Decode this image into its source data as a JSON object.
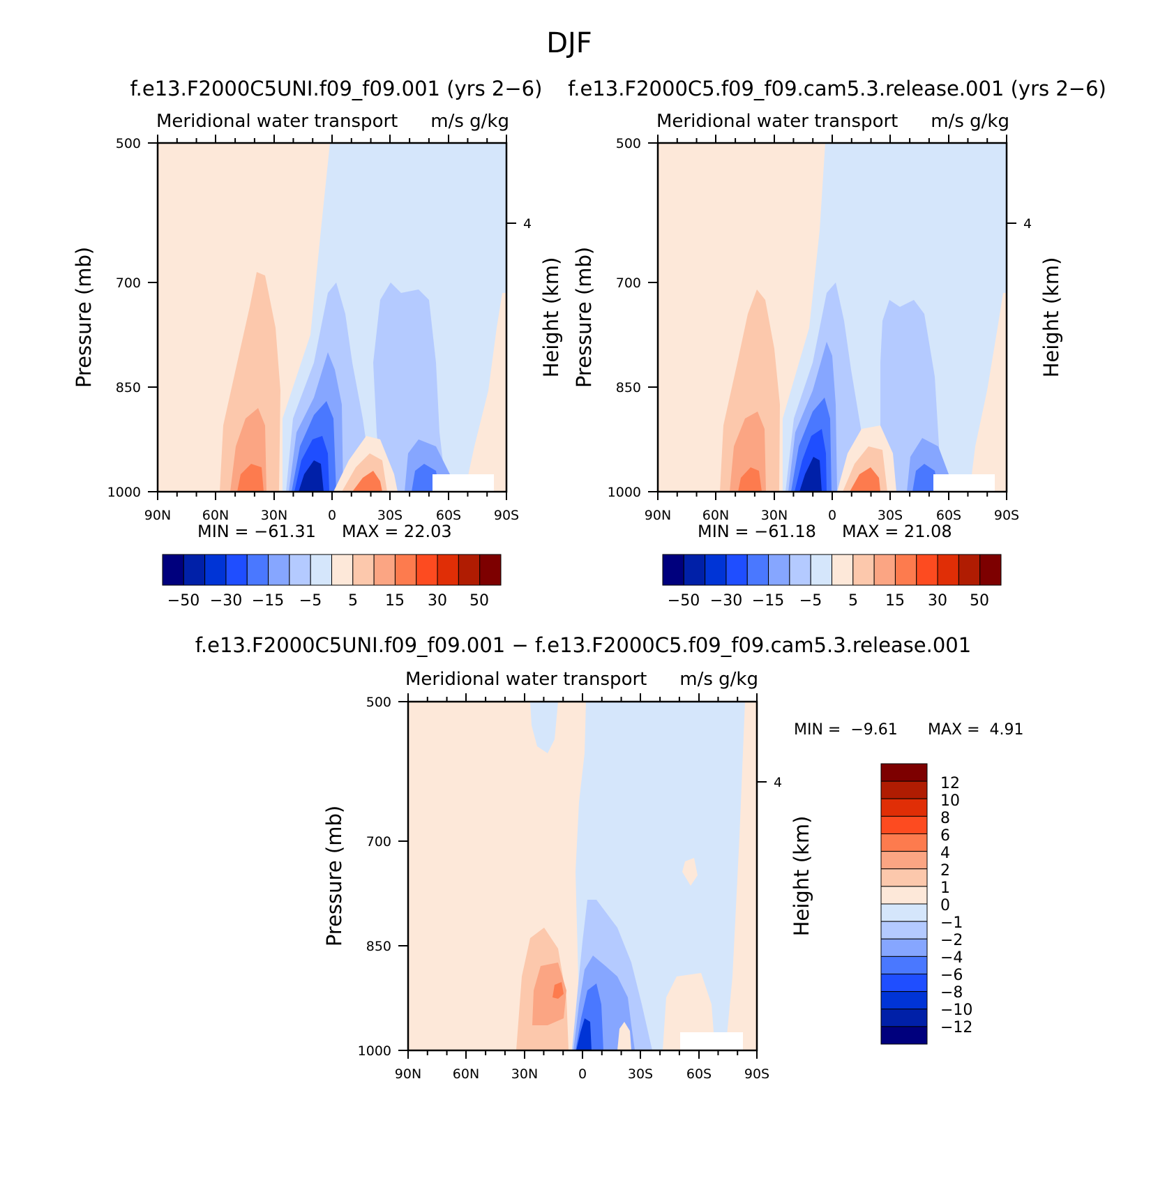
{
  "figure_title": "DJF",
  "colors": {
    "cmap": [
      "#00007d",
      "#0020a8",
      "#0034d6",
      "#1f4eff",
      "#4a78ff",
      "#86a6ff",
      "#b4caff",
      "#d5e6fb",
      "#fde8d9",
      "#fcc8ac",
      "#fba583",
      "#fd7b4e",
      "#fd4b20",
      "#e02e06",
      "#b01c02",
      "#7d0000"
    ]
  },
  "chart_data": [
    {
      "type": "heatmap",
      "id": "panel-1",
      "title": "f.e13.F2000C5UNI.f09_f09.001 (yrs 2−6)",
      "variable": "Meridional water transport",
      "units": "m/s g/kg",
      "x_ticks": [
        "90N",
        "60N",
        "30N",
        "0",
        "30S",
        "60S",
        "90S"
      ],
      "x_range": [
        90,
        -90
      ],
      "ylabel": "Pressure (mb)",
      "y_ticks": [
        "500",
        "700",
        "850",
        "1000"
      ],
      "y_range": [
        500,
        1000
      ],
      "y_scale": "log",
      "right_label": "Height (km)",
      "right_ticks": [
        "4"
      ],
      "min_label": "MIN = −61.31",
      "max_label": "MAX = 22.03",
      "min": -61.31,
      "max": 22.03,
      "levels": [
        -50,
        -40,
        -30,
        -20,
        -15,
        -10,
        -5,
        0,
        5,
        10,
        15,
        20,
        30,
        40,
        50
      ],
      "colorbar_labels": [
        "−50",
        "−30",
        "−15",
        "−5",
        "5",
        "15",
        "30",
        "50"
      ],
      "features": [
        {
          "lat": -10,
          "p": 960,
          "value": -61
        },
        {
          "lat": -22,
          "p": 970,
          "value": 22
        },
        {
          "lat": 40,
          "p": 960,
          "value": 18
        },
        {
          "lat": -40,
          "p": 800,
          "value": -8
        },
        {
          "lat": -58,
          "p": 970,
          "value": -14
        }
      ]
    },
    {
      "type": "heatmap",
      "id": "panel-2",
      "title": "f.e13.F2000C5.f09_f09.cam5.3.release.001 (yrs 2−6)",
      "variable": "Meridional water transport",
      "units": "m/s g/kg",
      "x_ticks": [
        "90N",
        "60N",
        "30N",
        "0",
        "30S",
        "60S",
        "90S"
      ],
      "x_range": [
        90,
        -90
      ],
      "ylabel": "Pressure (mb)",
      "y_ticks": [
        "500",
        "700",
        "850",
        "1000"
      ],
      "y_range": [
        500,
        1000
      ],
      "y_scale": "log",
      "right_label": "Height (km)",
      "right_ticks": [
        "4"
      ],
      "min_label": "MIN = −61.18",
      "max_label": "MAX = 21.08",
      "min": -61.18,
      "max": 21.08,
      "levels": [
        -50,
        -40,
        -30,
        -20,
        -15,
        -10,
        -5,
        0,
        5,
        10,
        15,
        20,
        30,
        40,
        50
      ],
      "colorbar_labels": [
        "−50",
        "−30",
        "−15",
        "−5",
        "5",
        "15",
        "30",
        "50"
      ],
      "features": [
        {
          "lat": -10,
          "p": 960,
          "value": -61
        },
        {
          "lat": -20,
          "p": 970,
          "value": 21
        },
        {
          "lat": 40,
          "p": 960,
          "value": 17
        },
        {
          "lat": -40,
          "p": 800,
          "value": -8
        },
        {
          "lat": -58,
          "p": 975,
          "value": -13
        }
      ]
    },
    {
      "type": "heatmap",
      "id": "panel-3",
      "title": "f.e13.F2000C5UNI.f09_f09.001 − f.e13.F2000C5.f09_f09.cam5.3.release.001",
      "variable": "Meridional water transport",
      "units": "m/s g/kg",
      "x_ticks": [
        "90N",
        "60N",
        "30N",
        "0",
        "30S",
        "60S",
        "90S"
      ],
      "x_range": [
        90,
        -90
      ],
      "ylabel": "Pressure (mb)",
      "y_ticks": [
        "500",
        "700",
        "850",
        "1000"
      ],
      "y_range": [
        500,
        1000
      ],
      "y_scale": "log",
      "right_label": "Height (km)",
      "right_ticks": [
        "4"
      ],
      "min_label": "MIN =  −9.61",
      "max_label": "MAX =  4.91",
      "min": -9.61,
      "max": 4.91,
      "levels": [
        -12,
        -10,
        -8,
        -6,
        -4,
        -2,
        -1,
        0,
        1,
        2,
        4,
        6,
        8,
        10,
        12
      ],
      "colorbar_labels": [
        "12",
        "10",
        "8",
        "6",
        "4",
        "2",
        "1",
        "0",
        "−1",
        "−2",
        "−4",
        "−6",
        "−8",
        "−10",
        "−12"
      ],
      "features": [
        {
          "lat": -1,
          "p": 960,
          "value": -9.6
        },
        {
          "lat": 12,
          "p": 920,
          "value": 4.9
        },
        {
          "lat": -15,
          "p": 930,
          "value": -3
        }
      ]
    }
  ]
}
